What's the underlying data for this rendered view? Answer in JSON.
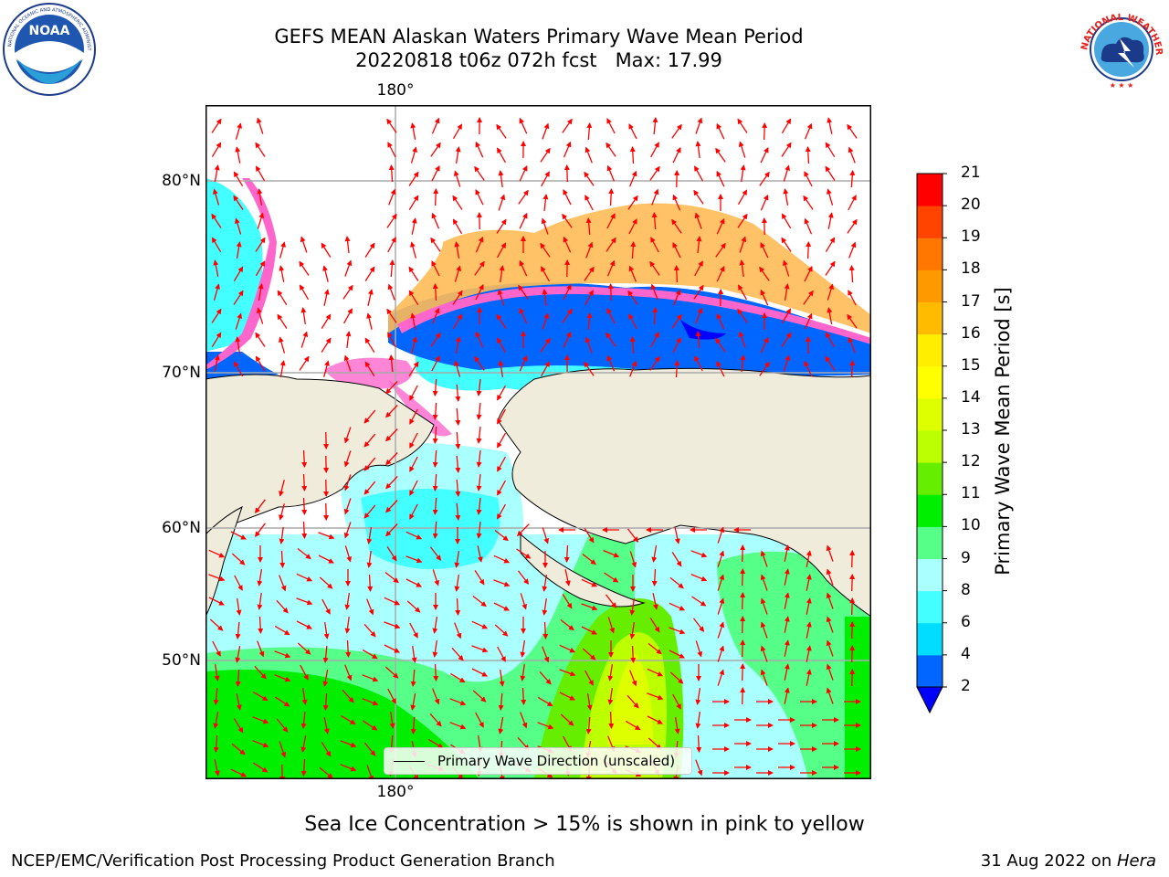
{
  "header": {
    "title_line1": "GEFS MEAN Alaskan Waters Primary Wave Mean Period",
    "title_line2": "20220818 t06z 072h fcst   Max: 17.99"
  },
  "logos": {
    "left": "NOAA",
    "left_ring": "NATIONAL OCEANIC AND ATMOSPHERIC ADMINISTRATION · U.S. DEPARTMENT OF COMMERCE",
    "right_ring": "NATIONAL WEATHER SERVICE"
  },
  "map": {
    "lon_label_top": "180°",
    "lon_label_bottom": "180°",
    "lat_labels": [
      "80°N",
      "70°N",
      "60°N",
      "50°N"
    ],
    "legend_text": "Primary Wave Direction (unscaled)",
    "arrow_color": "#ff0000",
    "land_color": "#efecdc"
  },
  "colorbar": {
    "label": "Primary Wave Mean Period [s]",
    "ticks": [
      "2",
      "4",
      "6",
      "8",
      "9",
      "10",
      "11",
      "12",
      "13",
      "14",
      "15",
      "16",
      "17",
      "18",
      "19",
      "20",
      "21"
    ],
    "colors": [
      "#0066ff",
      "#00ddff",
      "#44ffff",
      "#aaffff",
      "#55ff88",
      "#00ee00",
      "#66ee00",
      "#bbff00",
      "#ddff00",
      "#ffff00",
      "#ffee00",
      "#ffbb00",
      "#ff9900",
      "#ff7700",
      "#ff4400",
      "#ff0000"
    ],
    "under_color": "#0000ff"
  },
  "caption": "Sea Ice Concentration > 15% is shown in pink to yellow",
  "footer": {
    "left": "NCEP/EMC/Verification Post Processing Product Generation Branch",
    "right_prefix": "31 Aug 2022 on ",
    "right_host": "Hera"
  }
}
